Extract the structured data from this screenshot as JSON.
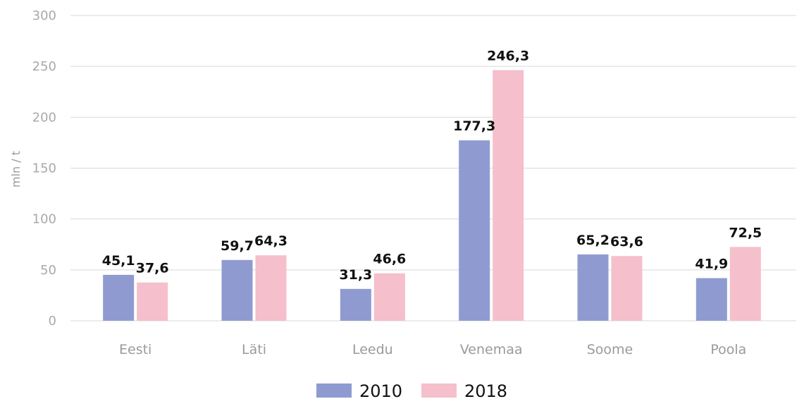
{
  "chart_data": {
    "type": "bar",
    "ylabel": "mln / t",
    "ylim": [
      0,
      300
    ],
    "yticks": [
      0,
      50,
      100,
      150,
      200,
      250,
      300
    ],
    "categories": [
      "Eesti",
      "Läti",
      "Leedu",
      "Venemaa",
      "Soome",
      "Poola"
    ],
    "series": [
      {
        "name": "2010",
        "color": "#8f9bd0",
        "values": [
          45.1,
          59.7,
          31.3,
          177.3,
          65.2,
          41.9
        ],
        "labels": [
          "45,1",
          "59,7",
          "31,3",
          "177,3",
          "65,2",
          "41,9"
        ]
      },
      {
        "name": "2018",
        "color": "#f5bfcb",
        "values": [
          37.6,
          64.3,
          46.6,
          246.3,
          63.6,
          72.5
        ],
        "labels": [
          "37,6",
          "64,3",
          "46,6",
          "246,3",
          "63,6",
          "72,5"
        ]
      }
    ],
    "grid": true,
    "legend": "bottom-center"
  }
}
